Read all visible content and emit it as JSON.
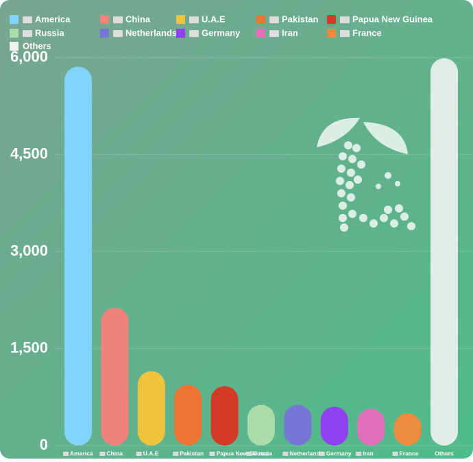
{
  "chart_data": {
    "type": "bar",
    "categories": [
      "America",
      "China",
      "U.A.E",
      "Pakistan",
      "Papua New Guinea",
      "Russia",
      "Netherlands",
      "Germany",
      "Iran",
      "France",
      "Others"
    ],
    "values": [
      5860,
      2130,
      1150,
      940,
      920,
      630,
      630,
      600,
      570,
      500,
      5990
    ],
    "colors": [
      "#80d4fb",
      "#f0817b",
      "#efc43d",
      "#ec7432",
      "#d33b26",
      "#a9dca9",
      "#7676d5",
      "#903ff1",
      "#e070b9",
      "#ed8b3f",
      "#eef3ef"
    ],
    "ylim": [
      0,
      6000
    ],
    "yticks": [
      0,
      {
        "value": 1500,
        "label": "1,500"
      },
      {
        "value": 3000,
        "label": "3,000"
      },
      {
        "value": 4500,
        "label": "4,500"
      },
      {
        "value": 6000,
        "label": "6,000"
      }
    ],
    "grid": true
  }
}
